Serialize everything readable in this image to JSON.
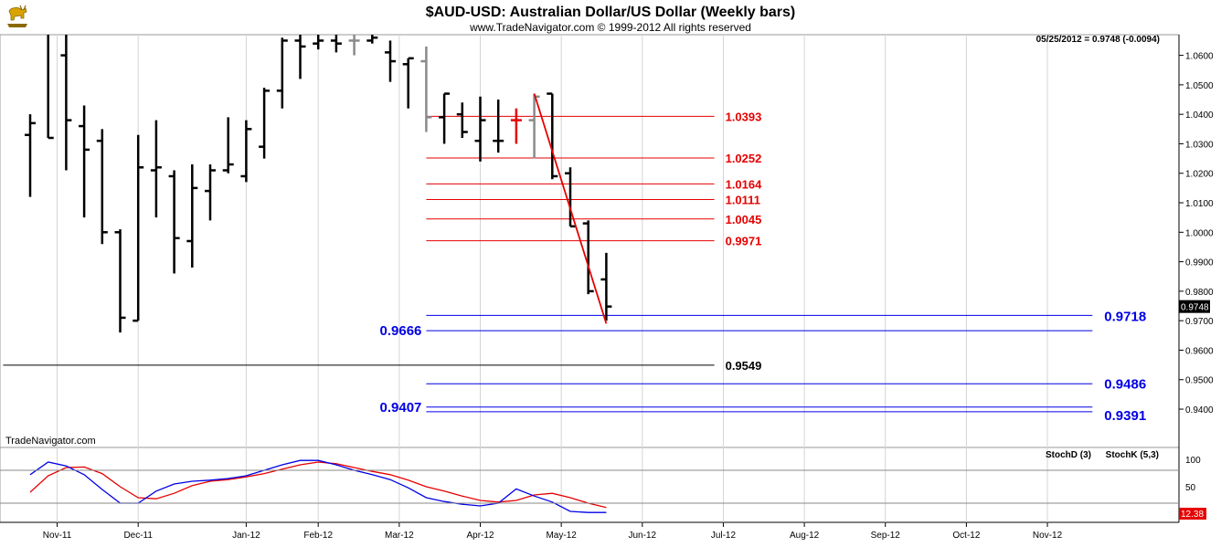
{
  "header": {
    "title": "$AUD-USD:  Australian Dollar/US Dollar  (Weekly bars)",
    "subtitle": "www.TradeNavigator.com © 1999-2012 All rights reserved",
    "quote_line": "05/25/2012 = 0.9748 (-0.0094)",
    "current_price_label": "0.9748",
    "logo_icon": "bull-logo-icon"
  },
  "colors": {
    "red": "#e60000",
    "blue": "#0000e6",
    "grid": "#c0c0c0",
    "bar_black": "#000000",
    "bar_gray": "#8a8a8a"
  },
  "chart_data": [
    {
      "type": "ohlc",
      "title": "$AUD-USD:  Australian Dollar/US Dollar  (Weekly bars)",
      "ylim": [
        0.927,
        1.067
      ],
      "y_ticks": [
        "1.0600",
        "1.0500",
        "1.0400",
        "1.0300",
        "1.0200",
        "1.0100",
        "1.0000",
        "0.9900",
        "0.9800",
        "0.9700",
        "0.9600",
        "0.9500",
        "0.9400"
      ],
      "x_tick_labels": [
        "Nov-11",
        "Dec-11",
        "Jan-12",
        "Feb-12",
        "Mar-12",
        "Apr-12",
        "May-12",
        "Jun-12",
        "Jul-12",
        "Aug-12",
        "Sep-12",
        "Oct-12",
        "Nov-12"
      ],
      "bars": [
        {
          "w": 0,
          "o": 1.033,
          "h": 1.04,
          "l": 1.012,
          "c": 1.037,
          "color": "black"
        },
        {
          "w": 1,
          "o": 1.068,
          "h": 1.07,
          "l": 1.032,
          "c": 1.032,
          "color": "black"
        },
        {
          "w": 2,
          "o": 1.06,
          "h": 1.07,
          "l": 1.021,
          "c": 1.038,
          "color": "black"
        },
        {
          "w": 3,
          "o": 1.036,
          "h": 1.043,
          "l": 1.005,
          "c": 1.028,
          "color": "black"
        },
        {
          "w": 4,
          "o": 1.031,
          "h": 1.035,
          "l": 0.996,
          "c": 1.0,
          "color": "black"
        },
        {
          "w": 5,
          "o": 1.0,
          "h": 1.001,
          "l": 0.966,
          "c": 0.971,
          "color": "black"
        },
        {
          "w": 6,
          "o": 0.97,
          "h": 1.033,
          "l": 0.97,
          "c": 1.022,
          "color": "black"
        },
        {
          "w": 7,
          "o": 1.021,
          "h": 1.038,
          "l": 1.005,
          "c": 1.022,
          "color": "black"
        },
        {
          "w": 8,
          "o": 1.019,
          "h": 1.021,
          "l": 0.986,
          "c": 0.998,
          "color": "black"
        },
        {
          "w": 9,
          "o": 0.997,
          "h": 1.023,
          "l": 0.988,
          "c": 1.015,
          "color": "black"
        },
        {
          "w": 10,
          "o": 1.014,
          "h": 1.023,
          "l": 1.004,
          "c": 1.021,
          "color": "black"
        },
        {
          "w": 11,
          "o": 1.021,
          "h": 1.039,
          "l": 1.02,
          "c": 1.023,
          "color": "black"
        },
        {
          "w": 12,
          "o": 1.019,
          "h": 1.038,
          "l": 1.017,
          "c": 1.035,
          "color": "black"
        },
        {
          "w": 13,
          "o": 1.029,
          "h": 1.049,
          "l": 1.025,
          "c": 1.048,
          "color": "black"
        },
        {
          "w": 14,
          "o": 1.048,
          "h": 1.066,
          "l": 1.042,
          "c": 1.065,
          "color": "black"
        },
        {
          "w": 15,
          "o": 1.065,
          "h": 1.07,
          "l": 1.052,
          "c": 1.063,
          "color": "black"
        },
        {
          "w": 16,
          "o": 1.064,
          "h": 1.07,
          "l": 1.062,
          "c": 1.065,
          "color": "black"
        },
        {
          "w": 17,
          "o": 1.065,
          "h": 1.07,
          "l": 1.061,
          "c": 1.064,
          "color": "black"
        },
        {
          "w": 18,
          "o": 1.065,
          "h": 1.07,
          "l": 1.06,
          "c": 1.065,
          "color": "gray"
        },
        {
          "w": 19,
          "o": 1.065,
          "h": 1.07,
          "l": 1.064,
          "c": 1.066,
          "color": "black"
        },
        {
          "w": 20,
          "o": 1.061,
          "h": 1.065,
          "l": 1.051,
          "c": 1.058,
          "color": "black"
        },
        {
          "w": 21,
          "o": 1.057,
          "h": 1.059,
          "l": 1.042,
          "c": 1.059,
          "color": "black"
        },
        {
          "w": 22,
          "o": 1.058,
          "h": 1.063,
          "l": 1.034,
          "c": 1.039,
          "color": "gray"
        },
        {
          "w": 23,
          "o": 1.039,
          "h": 1.047,
          "l": 1.03,
          "c": 1.047,
          "color": "black"
        },
        {
          "w": 24,
          "o": 1.04,
          "h": 1.044,
          "l": 1.032,
          "c": 1.034,
          "color": "black"
        },
        {
          "w": 25,
          "o": 1.031,
          "h": 1.046,
          "l": 1.024,
          "c": 1.038,
          "color": "black"
        },
        {
          "w": 26,
          "o": 1.031,
          "h": 1.045,
          "l": 1.027,
          "c": 1.031,
          "color": "black"
        },
        {
          "w": 27,
          "o": 1.038,
          "h": 1.042,
          "l": 1.03,
          "c": 1.038,
          "color": "red"
        },
        {
          "w": 28,
          "o": 1.038,
          "h": 1.047,
          "l": 1.025,
          "c": 1.046,
          "color": "gray"
        },
        {
          "w": 29,
          "o": 1.047,
          "h": 1.047,
          "l": 1.018,
          "c": 1.019,
          "color": "black"
        },
        {
          "w": 30,
          "o": 1.02,
          "h": 1.022,
          "l": 1.002,
          "c": 1.002,
          "color": "black"
        },
        {
          "w": 31,
          "o": 1.003,
          "h": 1.004,
          "l": 0.979,
          "c": 0.98,
          "color": "black"
        },
        {
          "w": 32,
          "o": 0.984,
          "h": 0.993,
          "l": 0.97,
          "c": 0.9748,
          "color": "black"
        }
      ],
      "trendline": [
        {
          "w": 28,
          "price": 1.047
        },
        {
          "w": 32,
          "price": 0.969
        }
      ],
      "levels": [
        {
          "label": "1.0393",
          "price": 1.0393,
          "color": "red",
          "from_w": 22,
          "to_w": 38
        },
        {
          "label": "1.0252",
          "price": 1.0252,
          "color": "red",
          "from_w": 22,
          "to_w": 38
        },
        {
          "label": "1.0164",
          "price": 1.0164,
          "color": "red",
          "from_w": 22,
          "to_w": 38
        },
        {
          "label": "1.0111",
          "price": 1.0111,
          "color": "red",
          "from_w": 22,
          "to_w": 38
        },
        {
          "label": "1.0045",
          "price": 1.0045,
          "color": "red",
          "from_w": 22,
          "to_w": 38
        },
        {
          "label": "0.9971",
          "price": 0.9971,
          "color": "red",
          "from_w": 22,
          "to_w": 38
        },
        {
          "label": "0.9718",
          "price": 0.9718,
          "color": "blue",
          "from_w": 22,
          "to_w": 59
        },
        {
          "label": "0.9666",
          "price": 0.9666,
          "color": "blue",
          "from_w": 22,
          "to_w": 59
        },
        {
          "label": "0.9549",
          "price": 0.9549,
          "color": "black",
          "from_w": -1.5,
          "to_w": 38
        },
        {
          "label": "0.9486",
          "price": 0.9486,
          "color": "blue",
          "from_w": 22,
          "to_w": 59
        },
        {
          "label": "0.9407",
          "price": 0.9407,
          "color": "blue",
          "from_w": 22,
          "to_w": 59
        },
        {
          "label": "0.9391",
          "price": 0.9391,
          "color": "blue",
          "from_w": 22,
          "to_w": 59
        }
      ]
    },
    {
      "type": "line",
      "title": "TradeNavigator.com",
      "ylim": [
        0,
        100
      ],
      "y_ticks": [
        "100",
        "50"
      ],
      "reference_lines": [
        80,
        20
      ],
      "current_value_label": "12.38",
      "x": [
        0,
        1,
        2,
        3,
        4,
        5,
        6,
        7,
        8,
        9,
        10,
        11,
        12,
        13,
        14,
        15,
        16,
        17,
        18,
        19,
        20,
        21,
        22,
        23,
        24,
        25,
        26,
        27,
        28,
        29,
        30,
        31,
        32
      ],
      "series": [
        {
          "name": "StochD (3)",
          "color": "red",
          "values": [
            40,
            70,
            85,
            86,
            74,
            50,
            30,
            28,
            38,
            52,
            60,
            63,
            68,
            74,
            82,
            90,
            95,
            92,
            85,
            78,
            72,
            62,
            50,
            42,
            33,
            25,
            22,
            25,
            35,
            38,
            30,
            20,
            12
          ]
        },
        {
          "name": "StochK (5,3)",
          "color": "blue",
          "values": [
            72,
            95,
            88,
            72,
            45,
            20,
            20,
            42,
            55,
            60,
            62,
            65,
            70,
            80,
            90,
            98,
            98,
            90,
            80,
            72,
            63,
            48,
            30,
            23,
            18,
            15,
            20,
            46,
            33,
            22,
            5,
            3,
            3
          ]
        }
      ]
    }
  ]
}
